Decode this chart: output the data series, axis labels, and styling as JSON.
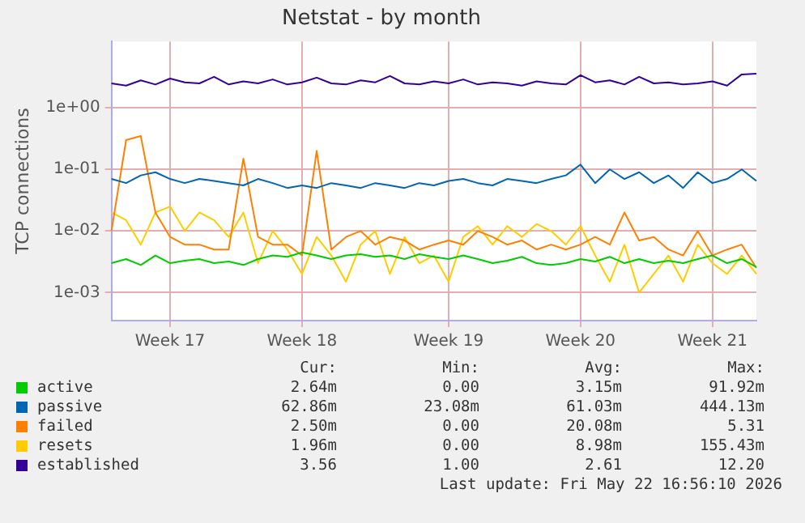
{
  "chart_data": {
    "type": "line",
    "title": "Netstat - by month",
    "ylabel": "TCP connections",
    "log": "y",
    "grid": true,
    "legend": "bottom",
    "marker": "none",
    "line_style": "solid",
    "categories": [
      null,
      null,
      null,
      null,
      "Week 17",
      null,
      null,
      null,
      null,
      null,
      null,
      null,
      null,
      "Week 18",
      null,
      null,
      null,
      null,
      null,
      null,
      null,
      null,
      null,
      "Week 19",
      null,
      null,
      null,
      null,
      null,
      null,
      null,
      null,
      "Week 20",
      null,
      null,
      null,
      null,
      null,
      null,
      null,
      null,
      "Week 21",
      null,
      null,
      null
    ],
    "ylim": [
      0.00035,
      12
    ],
    "yticks": [
      {
        "value": 0.001,
        "label": "1e-03"
      },
      {
        "value": 0.01,
        "label": "1e-02"
      },
      {
        "value": 0.1,
        "label": "1e-01"
      },
      {
        "value": 1,
        "label": "1e+00"
      }
    ],
    "series": [
      {
        "name": "active",
        "color": "#00cc00",
        "values": [
          0.003,
          0.0035,
          0.0028,
          0.004,
          0.003,
          0.0033,
          0.0035,
          0.003,
          0.0032,
          0.0028,
          0.0035,
          0.004,
          0.0038,
          0.0045,
          0.004,
          0.0035,
          0.004,
          0.0042,
          0.0038,
          0.004,
          0.0035,
          0.0042,
          0.0038,
          0.0035,
          0.004,
          0.0035,
          0.003,
          0.0033,
          0.0038,
          0.003,
          0.0028,
          0.003,
          0.0035,
          0.0032,
          0.0038,
          0.003,
          0.0035,
          0.003,
          0.0033,
          0.003,
          0.0035,
          0.004,
          0.003,
          0.0035,
          0.0026
        ]
      },
      {
        "name": "passive",
        "color": "#0066b3",
        "values": [
          0.07,
          0.06,
          0.08,
          0.09,
          0.07,
          0.06,
          0.07,
          0.065,
          0.06,
          0.055,
          0.07,
          0.06,
          0.05,
          0.055,
          0.05,
          0.06,
          0.055,
          0.05,
          0.06,
          0.055,
          0.05,
          0.06,
          0.055,
          0.065,
          0.07,
          0.06,
          0.055,
          0.07,
          0.065,
          0.06,
          0.07,
          0.08,
          0.12,
          0.06,
          0.1,
          0.07,
          0.09,
          0.06,
          0.08,
          0.05,
          0.09,
          0.06,
          0.07,
          0.1,
          0.065
        ]
      },
      {
        "name": "failed",
        "color": "#ff8000",
        "values": [
          0.01,
          0.3,
          0.35,
          0.02,
          0.008,
          0.006,
          0.006,
          0.005,
          0.005,
          0.15,
          0.008,
          0.006,
          0.006,
          0.004,
          0.2,
          0.005,
          0.008,
          0.01,
          0.006,
          0.008,
          0.007,
          0.005,
          0.006,
          0.007,
          0.006,
          0.01,
          0.008,
          0.006,
          0.007,
          0.005,
          0.006,
          0.005,
          0.006,
          0.008,
          0.006,
          0.02,
          0.007,
          0.008,
          0.005,
          0.004,
          0.01,
          0.004,
          0.005,
          0.006,
          0.0025
        ]
      },
      {
        "name": "resets",
        "color": "#ffcc00",
        "values": [
          0.02,
          0.015,
          0.006,
          0.02,
          0.025,
          0.01,
          0.02,
          0.015,
          0.008,
          0.02,
          0.003,
          0.01,
          0.005,
          0.002,
          0.008,
          0.004,
          0.0015,
          0.006,
          0.01,
          0.002,
          0.008,
          0.003,
          0.004,
          0.0015,
          0.008,
          0.012,
          0.006,
          0.012,
          0.008,
          0.013,
          0.01,
          0.006,
          0.012,
          0.004,
          0.0015,
          0.006,
          0.001,
          0.002,
          0.004,
          0.0015,
          0.006,
          0.003,
          0.002,
          0.004,
          0.002
        ]
      },
      {
        "name": "established",
        "color": "#330099",
        "values": [
          2.5,
          2.3,
          2.8,
          2.4,
          3.0,
          2.6,
          2.5,
          3.2,
          2.4,
          2.7,
          2.5,
          2.9,
          2.4,
          2.6,
          3.1,
          2.5,
          2.4,
          2.8,
          2.6,
          3.3,
          2.5,
          2.4,
          2.7,
          2.5,
          2.9,
          2.4,
          2.6,
          2.5,
          2.3,
          2.7,
          2.5,
          2.4,
          3.4,
          2.6,
          2.8,
          2.4,
          3.2,
          2.5,
          2.6,
          2.4,
          2.5,
          2.7,
          2.3,
          3.5,
          3.6
        ]
      }
    ],
    "annotations": [
      "Cur:",
      "Min:",
      "Avg:",
      "Max:",
      "2.64m",
      "0.00",
      "3.15m",
      "91.92m",
      "62.86m",
      "23.08m",
      "61.03m",
      "444.13m",
      "2.50m",
      "0.00",
      "20.08m",
      "5.31",
      "1.96m",
      "0.00",
      "8.98m",
      "155.43m",
      "3.56",
      "1.00",
      "2.61",
      "12.20",
      "Last update: Fri May 22 16:56:10 2026"
    ]
  }
}
